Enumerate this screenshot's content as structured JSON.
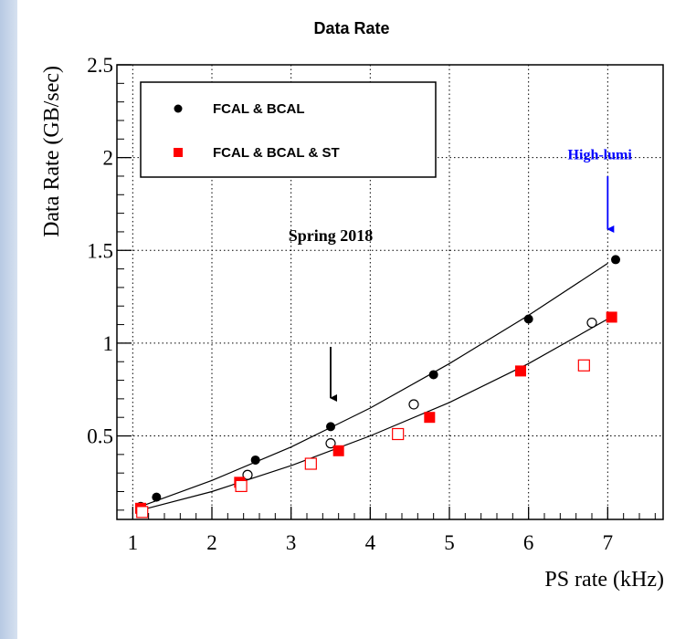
{
  "chart_data": {
    "type": "scatter",
    "title": "Data Rate",
    "xlabel": "PS rate  (kHz)",
    "ylabel": "Data Rate   (GB/sec)",
    "xlim": [
      0.8,
      7.7
    ],
    "ylim": [
      0.05,
      2.5
    ],
    "x_ticks": [
      "1",
      "2",
      "3",
      "4",
      "5",
      "6",
      "7"
    ],
    "y_ticks": [
      "0.5",
      "1",
      "1.5",
      "2",
      "2.5"
    ],
    "grid": true,
    "legend": {
      "placement": "top-left",
      "entries": [
        "FCAL & BCAL",
        "FCAL & BCAL & ST"
      ]
    },
    "series": [
      {
        "name": "FCAL & BCAL",
        "marker": "filled-circle",
        "color": "#000000",
        "points": [
          [
            1.1,
            0.12
          ],
          [
            1.3,
            0.17
          ],
          [
            2.55,
            0.37
          ],
          [
            3.5,
            0.55
          ],
          [
            4.8,
            0.83
          ],
          [
            6.0,
            1.13
          ],
          [
            7.1,
            1.45
          ]
        ]
      },
      {
        "name": "FCAL & BCAL (open)",
        "marker": "open-circle",
        "color": "#000000",
        "points": [
          [
            1.1,
            0.1
          ],
          [
            2.45,
            0.29
          ],
          [
            3.5,
            0.46
          ],
          [
            4.55,
            0.67
          ],
          [
            6.8,
            1.11
          ]
        ]
      },
      {
        "name": "FCAL & BCAL & ST",
        "marker": "filled-square",
        "color": "#ff0000",
        "points": [
          [
            1.1,
            0.11
          ],
          [
            2.35,
            0.25
          ],
          [
            3.6,
            0.42
          ],
          [
            4.75,
            0.6
          ],
          [
            5.9,
            0.85
          ],
          [
            7.05,
            1.14
          ]
        ]
      },
      {
        "name": "FCAL & BCAL & ST (open)",
        "marker": "open-square",
        "color": "#ff0000",
        "points": [
          [
            1.12,
            0.09
          ],
          [
            2.37,
            0.23
          ],
          [
            3.25,
            0.35
          ],
          [
            4.35,
            0.51
          ],
          [
            6.7,
            0.88
          ]
        ]
      }
    ],
    "fit_curves": [
      {
        "series": "FCAL & BCAL",
        "color": "#000000",
        "points": [
          [
            1.1,
            0.12
          ],
          [
            2.0,
            0.26
          ],
          [
            3.0,
            0.44
          ],
          [
            4.0,
            0.65
          ],
          [
            5.0,
            0.89
          ],
          [
            6.0,
            1.15
          ],
          [
            7.0,
            1.43
          ]
        ]
      },
      {
        "series": "FCAL & BCAL & ST",
        "color": "#000000",
        "points": [
          [
            1.1,
            0.1
          ],
          [
            2.0,
            0.2
          ],
          [
            3.0,
            0.34
          ],
          [
            4.0,
            0.5
          ],
          [
            5.0,
            0.68
          ],
          [
            6.0,
            0.89
          ],
          [
            7.0,
            1.13
          ]
        ]
      }
    ],
    "annotations": [
      {
        "id": "spring",
        "text": "Spring 2018",
        "color": "#000000",
        "at": [
          3.5,
          1.55
        ],
        "arrow_from": [
          3.5,
          0.98
        ],
        "arrow_to": [
          3.5,
          0.67
        ]
      },
      {
        "id": "highlumi",
        "text": "High-lumi",
        "color": "#0000ff",
        "at": [
          6.9,
          1.99
        ],
        "arrow_from": [
          7.0,
          1.9
        ],
        "arrow_to": [
          7.0,
          1.58
        ]
      }
    ]
  }
}
